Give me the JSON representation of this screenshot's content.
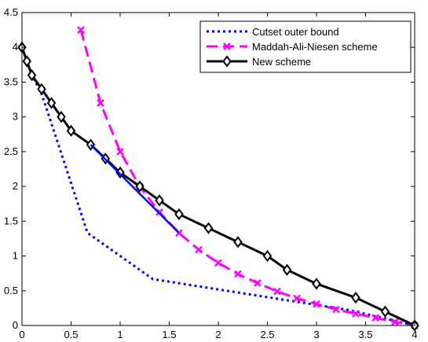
{
  "chart_data": {
    "type": "line",
    "title": "",
    "xlabel": "",
    "ylabel": "",
    "xlim": [
      0,
      4
    ],
    "ylim": [
      0,
      4.5
    ],
    "xticks": [
      0,
      0.5,
      1,
      1.5,
      2,
      2.5,
      3,
      3.5,
      4
    ],
    "yticks": [
      0,
      0.5,
      1,
      1.5,
      2,
      2.5,
      3,
      3.5,
      4,
      4.5
    ],
    "xtick_labels": [
      "0",
      "0.5",
      "1",
      "1.5",
      "2",
      "2.5",
      "3",
      "3.5",
      "4"
    ],
    "ytick_labels": [
      "0",
      "0.5",
      "1",
      "1.5",
      "2",
      "2.5",
      "3",
      "3.5",
      "4",
      "4.5"
    ],
    "grid": false,
    "legend_position": "top-right",
    "series": [
      {
        "name": "Cutset outer bound",
        "color": "#0000ff",
        "style": "dotted",
        "marker": "none",
        "x": [
          0,
          0.1,
          0.2,
          0.667,
          1.333,
          3.333,
          4
        ],
        "y": [
          4,
          3.6,
          3.333,
          1.333,
          0.667,
          0.222,
          0
        ]
      },
      {
        "name": "Maddah-Ali-Niesen scheme",
        "color": "#ff00ff",
        "style": "dashed",
        "marker": "x",
        "x": [
          0.6,
          0.8,
          1.0,
          1.2,
          1.4,
          1.6,
          1.8,
          2.0,
          2.2,
          2.4,
          2.6,
          2.8,
          3.0,
          3.2,
          3.4,
          3.6,
          3.8,
          4.0
        ],
        "y": [
          4.25,
          3.2,
          2.5,
          2.0,
          1.63,
          1.33,
          1.09,
          0.9,
          0.74,
          0.61,
          0.49,
          0.39,
          0.31,
          0.23,
          0.17,
          0.11,
          0.05,
          0
        ]
      },
      {
        "name": "New scheme",
        "color": "#000000",
        "style": "solid",
        "marker": "diamond",
        "x": [
          0,
          0.05,
          0.1,
          0.2,
          0.3,
          0.4,
          0.5,
          0.7,
          0.85,
          1.0,
          1.2,
          1.4,
          1.6,
          1.9,
          2.2,
          2.5,
          2.7,
          3.0,
          3.4,
          3.7,
          4.0
        ],
        "y": [
          4,
          3.8,
          3.6,
          3.4,
          3.2,
          3.0,
          2.8,
          2.6,
          2.4,
          2.2,
          2.0,
          1.8,
          1.6,
          1.4,
          1.2,
          1.0,
          0.8,
          0.6,
          0.4,
          0.2,
          0
        ]
      }
    ],
    "annotations": [
      {
        "type": "segment",
        "color": "#0000ff",
        "x": [
          0.7,
          1.6
        ],
        "y": [
          2.6,
          1.33
        ]
      }
    ]
  }
}
